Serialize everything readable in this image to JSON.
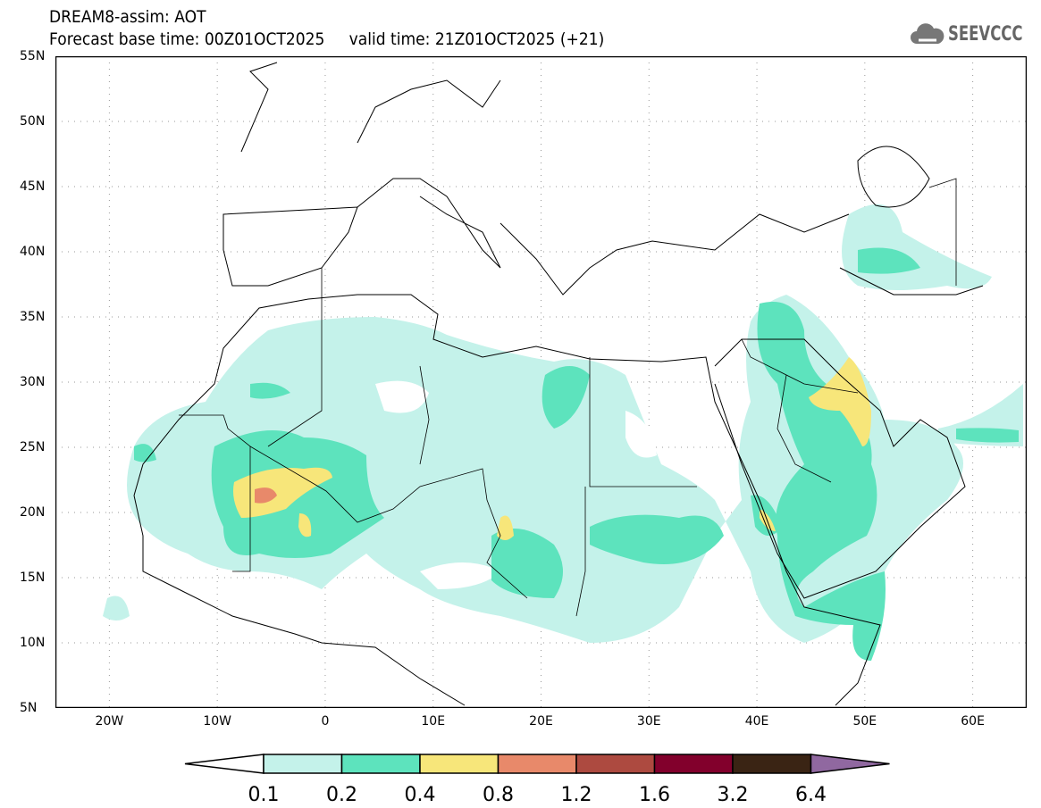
{
  "title": {
    "line1": "DREAM8-assim: AOT",
    "line2": "Forecast base time: 00Z01OCT2025     valid time: 21Z01OCT2025 (+21)"
  },
  "logo": {
    "text": "SEEVCCC",
    "icon": "cloud-icon"
  },
  "map": {
    "lon_range": [
      -25,
      65
    ],
    "lat_range": [
      5,
      55
    ],
    "lat_labels": [
      "55N",
      "50N",
      "45N",
      "40N",
      "35N",
      "30N",
      "25N",
      "20N",
      "15N",
      "10N",
      "5N"
    ],
    "lon_labels": [
      "20W",
      "10W",
      "0",
      "10E",
      "20E",
      "30E",
      "40E",
      "50E",
      "60E"
    ]
  },
  "colorbar": {
    "labels": [
      "0.1",
      "0.2",
      "0.4",
      "0.8",
      "1.2",
      "1.6",
      "3.2",
      "6.4"
    ],
    "colors": [
      "#ffffff",
      "#c4f2ea",
      "#5de3bd",
      "#f7e67a",
      "#e8896a",
      "#ad4a40",
      "#82002c",
      "#3a2414",
      "#9068a0"
    ]
  }
}
